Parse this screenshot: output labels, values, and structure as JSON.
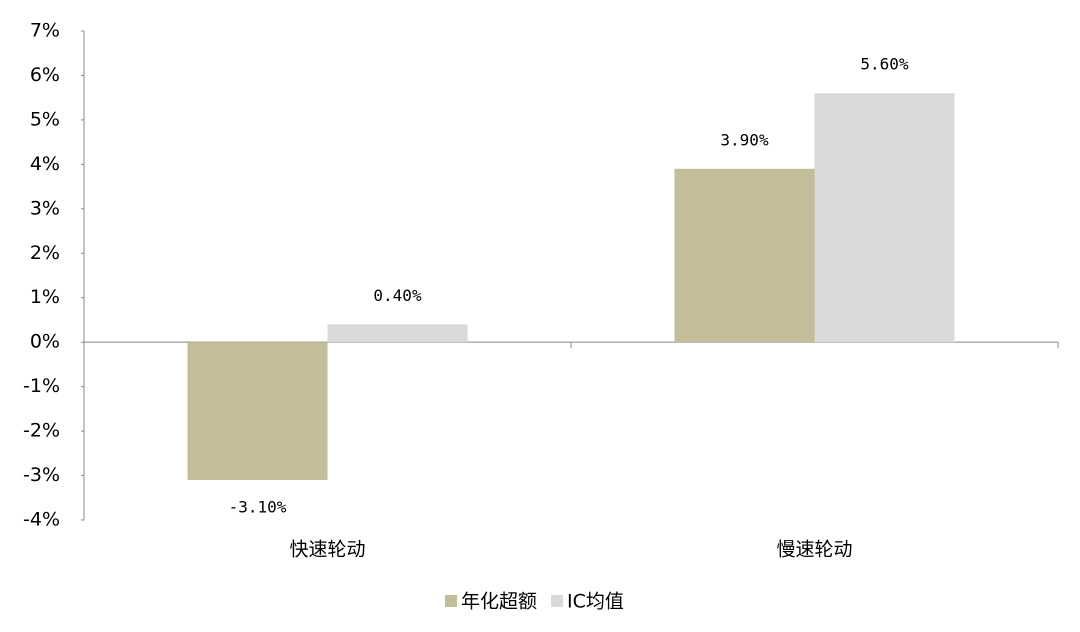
{
  "chart_data": {
    "type": "bar",
    "categories": [
      "快速轮动",
      "慢速轮动"
    ],
    "series": [
      {
        "name": "年化超额",
        "color": "#c4bd99",
        "values": [
          -3.1,
          3.9
        ],
        "value_labels": [
          "-3.10%",
          "3.90%"
        ]
      },
      {
        "name": "IC均值",
        "color": "#d9d9d9",
        "values": [
          0.4,
          5.6
        ],
        "value_labels": [
          "0.40%",
          "5.60%"
        ]
      }
    ],
    "ylim": [
      -4,
      7
    ],
    "yticks": [
      {
        "value": -4,
        "label": "-4%"
      },
      {
        "value": -3,
        "label": "-3%"
      },
      {
        "value": -2,
        "label": "-2%"
      },
      {
        "value": -1,
        "label": "-1%"
      },
      {
        "value": 0,
        "label": "0%"
      },
      {
        "value": 1,
        "label": "1%"
      },
      {
        "value": 2,
        "label": "2%"
      },
      {
        "value": 3,
        "label": "3%"
      },
      {
        "value": 4,
        "label": "4%"
      },
      {
        "value": 5,
        "label": "5%"
      },
      {
        "value": 6,
        "label": "6%"
      },
      {
        "value": 7,
        "label": "7%"
      }
    ],
    "grid": false,
    "legend": "bottom"
  }
}
